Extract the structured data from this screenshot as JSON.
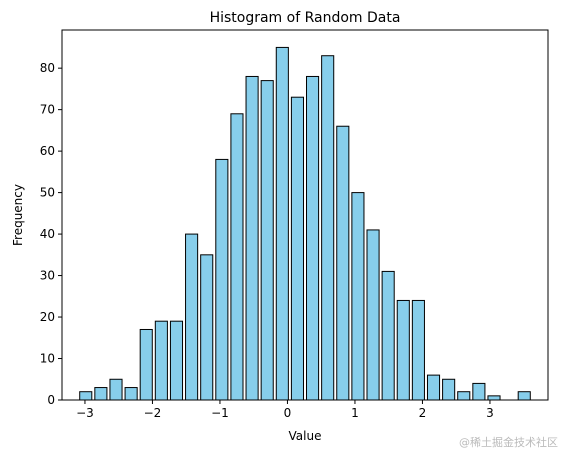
{
  "chart_data": {
    "type": "histogram",
    "title": "Histogram of Random Data",
    "x_label": "Value",
    "y_label": "Frequency",
    "bins": [
      -3.1,
      -2.876,
      -2.652,
      -2.428,
      -2.204,
      -1.98,
      -1.756,
      -1.532,
      -1.308,
      -1.084,
      -0.86,
      -0.636,
      -0.412,
      -0.188,
      0.036,
      0.26,
      0.484,
      0.708,
      0.932,
      1.156,
      1.38,
      1.604,
      1.828,
      2.052,
      2.276,
      2.5,
      2.724,
      2.948,
      3.172,
      3.396,
      3.62
    ],
    "values": [
      2,
      3,
      5,
      3,
      17,
      19,
      19,
      40,
      35,
      58,
      69,
      78,
      77,
      85,
      73,
      78,
      83,
      66,
      50,
      41,
      31,
      24,
      24,
      6,
      5,
      2,
      4,
      1,
      0,
      2
    ],
    "color": "#87ceeb",
    "edgecolor": "#000000",
    "xlim": [
      -3.34,
      3.86
    ],
    "ylim": [
      0,
      89.2
    ],
    "xticks": [
      {
        "value": -3,
        "label": "−3"
      },
      {
        "value": -2,
        "label": "−2"
      },
      {
        "value": -1,
        "label": "−1"
      },
      0,
      1,
      2,
      3
    ],
    "yticks": [
      0,
      10,
      20,
      30,
      40,
      50,
      60,
      70,
      80
    ],
    "watermark": "@稀土掘金技术社区"
  }
}
